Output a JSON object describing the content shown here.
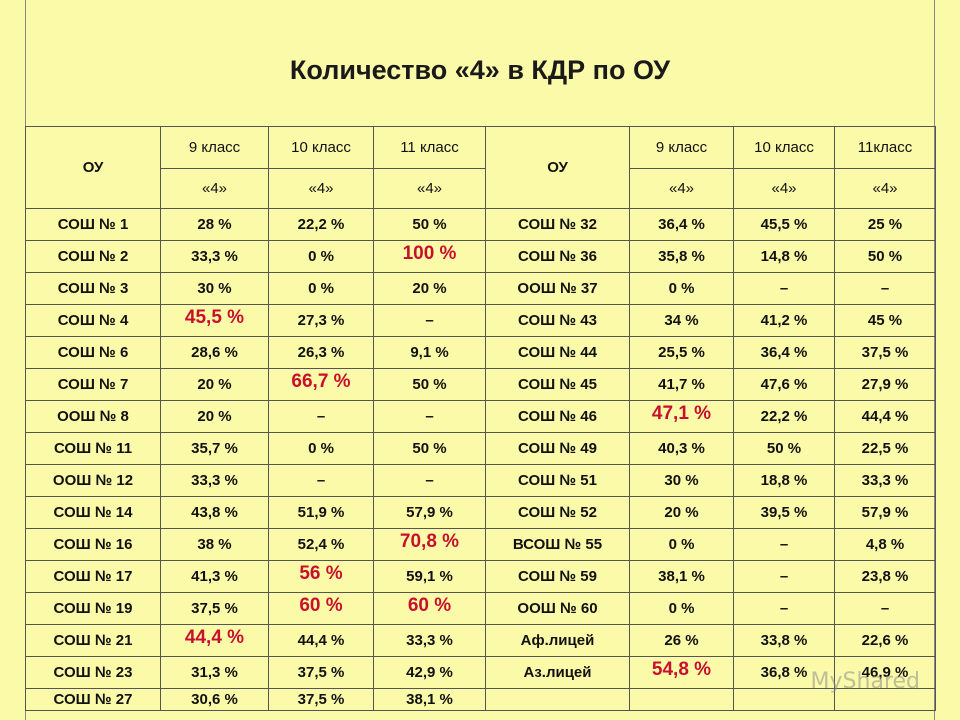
{
  "title": "Количество «4» в КДР по ОУ",
  "header": {
    "ou_label": "ОУ",
    "grade_labels_left": [
      "9 класс",
      "10 класс",
      "11 класс"
    ],
    "grade_labels_right": [
      "9 класс",
      "10 класс",
      "11класс"
    ],
    "mark_label": "«4»"
  },
  "rows": [
    {
      "left": {
        "school": "СОШ № 1",
        "g9": "28 %",
        "g10": "22,2 %",
        "g11": "50 %"
      },
      "right": {
        "school": "СОШ № 32",
        "g9": "36,4 %",
        "g10": "45,5 %",
        "g11": "25 %"
      }
    },
    {
      "left": {
        "school": "СОШ № 2",
        "g9": "33,3 %",
        "g10": "0 %",
        "g11": "100 %"
      },
      "right": {
        "school": "СОШ № 36",
        "g9": "35,8 %",
        "g10": "14,8 %",
        "g11": "50 %"
      }
    },
    {
      "left": {
        "school": "СОШ № 3",
        "g9": "30 %",
        "g10": "0 %",
        "g11": "20 %"
      },
      "right": {
        "school": "ООШ № 37",
        "g9": "0 %",
        "g10": "–",
        "g11": "–"
      }
    },
    {
      "left": {
        "school": "СОШ № 4",
        "g9": "45,5 %",
        "g10": "27,3 %",
        "g11": "–"
      },
      "right": {
        "school": "СОШ № 43",
        "g9": "34 %",
        "g10": "41,2 %",
        "g11": "45 %"
      }
    },
    {
      "left": {
        "school": "СОШ № 6",
        "g9": "28,6 %",
        "g10": "26,3 %",
        "g11": "9,1 %"
      },
      "right": {
        "school": "СОШ № 44",
        "g9": "25,5 %",
        "g10": "36,4 %",
        "g11": "37,5 %"
      }
    },
    {
      "left": {
        "school": "СОШ № 7",
        "g9": "20 %",
        "g10": "66,7 %",
        "g11": "50 %"
      },
      "right": {
        "school": "СОШ № 45",
        "g9": "41,7 %",
        "g10": "47,6 %",
        "g11": "27,9 %"
      }
    },
    {
      "left": {
        "school": "ООШ № 8",
        "g9": "20 %",
        "g10": "–",
        "g11": "–"
      },
      "right": {
        "school": "СОШ № 46",
        "g9": "47,1 %",
        "g10": "22,2 %",
        "g11": "44,4 %"
      }
    },
    {
      "left": {
        "school": "СОШ № 11",
        "g9": "35,7 %",
        "g10": "0 %",
        "g11": "50 %"
      },
      "right": {
        "school": "СОШ № 49",
        "g9": "40,3 %",
        "g10": "50 %",
        "g11": "22,5 %"
      }
    },
    {
      "left": {
        "school": "ООШ № 12",
        "g9": "33,3 %",
        "g10": "–",
        "g11": "–"
      },
      "right": {
        "school": "СОШ № 51",
        "g9": "30 %",
        "g10": "18,8 %",
        "g11": "33,3 %"
      }
    },
    {
      "left": {
        "school": "СОШ № 14",
        "g9": "43,8 %",
        "g10": "51,9 %",
        "g11": "57,9 %"
      },
      "right": {
        "school": "СОШ № 52",
        "g9": "20 %",
        "g10": "39,5 %",
        "g11": "57,9 %"
      }
    },
    {
      "left": {
        "school": "СОШ № 16",
        "g9": "38 %",
        "g10": "52,4 %",
        "g11": "70,8 %"
      },
      "right": {
        "school": "ВСОШ № 55",
        "g9": "0 %",
        "g10": "–",
        "g11": "4,8 %"
      }
    },
    {
      "left": {
        "school": "СОШ № 17",
        "g9": "41,3 %",
        "g10": "56 %",
        "g11": "59,1 %"
      },
      "right": {
        "school": "СОШ № 59",
        "g9": "38,1 %",
        "g10": "–",
        "g11": "23,8 %"
      }
    },
    {
      "left": {
        "school": "СОШ № 19",
        "g9": "37,5 %",
        "g10": "60 %",
        "g11": "60 %"
      },
      "right": {
        "school": "ООШ № 60",
        "g9": "0 %",
        "g10": "–",
        "g11": "–"
      }
    },
    {
      "left": {
        "school": "СОШ № 21",
        "g9": "44,4 %",
        "g10": "44,4 %",
        "g11": "33,3 %"
      },
      "right": {
        "school": "Аф.лицей",
        "g9": "26 %",
        "g10": "33,8 %",
        "g11": "22,6 %"
      }
    },
    {
      "left": {
        "school": "СОШ № 23",
        "g9": "31,3 %",
        "g10": "37,5 %",
        "g11": "42,9 %"
      },
      "right": {
        "school": "Аз.лицей",
        "g9": "54,8 %",
        "g10": "36,8 %",
        "g11": "46,9 %"
      }
    },
    {
      "left": {
        "school": "СОШ № 27",
        "g9": "30,6 %",
        "g10": "37,5 %",
        "g11": "38,1 %"
      },
      "right": {
        "school": "",
        "g9": "",
        "g10": "",
        "g11": ""
      }
    }
  ],
  "highlighted": [
    "1.left.g11",
    "3.left.g9",
    "5.left.g10",
    "6.right.g9",
    "10.left.g11",
    "11.left.g10",
    "12.left.g10",
    "12.left.g11",
    "13.left.g9",
    "14.right.g9"
  ],
  "colors": {
    "background": "#fbfaa8",
    "highlight": "#c8102e",
    "text": "#111111"
  },
  "watermark": "MyShared"
}
